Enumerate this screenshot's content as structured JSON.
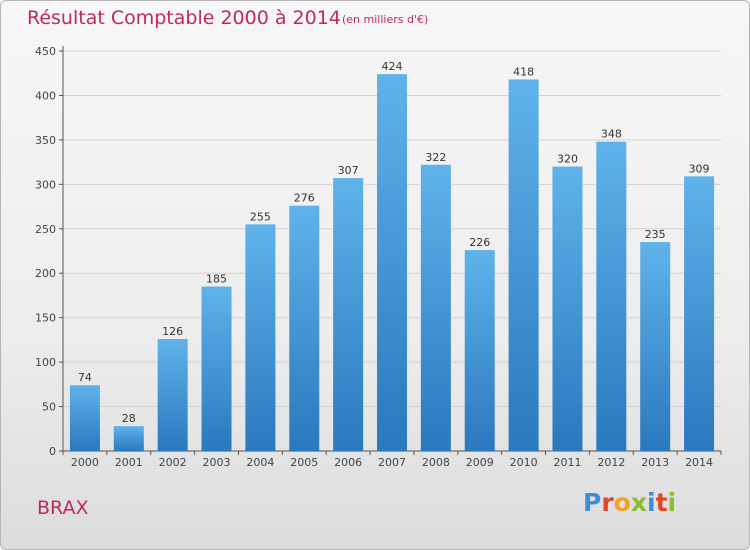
{
  "chart_data": {
    "type": "bar",
    "title": "Résultat Comptable 2000 à 2014",
    "subtitle": "(en milliers d'€)",
    "categories": [
      "2000",
      "2001",
      "2002",
      "2003",
      "2004",
      "2005",
      "2006",
      "2007",
      "2008",
      "2009",
      "2010",
      "2011",
      "2012",
      "2013",
      "2014"
    ],
    "values": [
      74,
      28,
      126,
      185,
      255,
      276,
      307,
      424,
      322,
      226,
      418,
      320,
      348,
      235,
      309
    ],
    "ylim": [
      0,
      450
    ],
    "yticks": [
      0,
      50,
      100,
      150,
      200,
      250,
      300,
      350,
      400,
      450
    ],
    "xlabel": "",
    "ylabel": "",
    "grid": true
  },
  "commune": "BRAX",
  "logo": {
    "letters": [
      "P",
      "r",
      "o",
      "x",
      "i",
      "t",
      "i"
    ],
    "colors": [
      "#3a8fd6",
      "#e2452a",
      "#f0a324",
      "#8bbf2f",
      "#3a8fd6",
      "#e2452a",
      "#8bbf2f"
    ]
  },
  "colors": {
    "accent": "#c0295b",
    "bar_top": "#5aaee8",
    "bar_bottom": "#2a79bf",
    "grid": "#cfcfcf"
  }
}
